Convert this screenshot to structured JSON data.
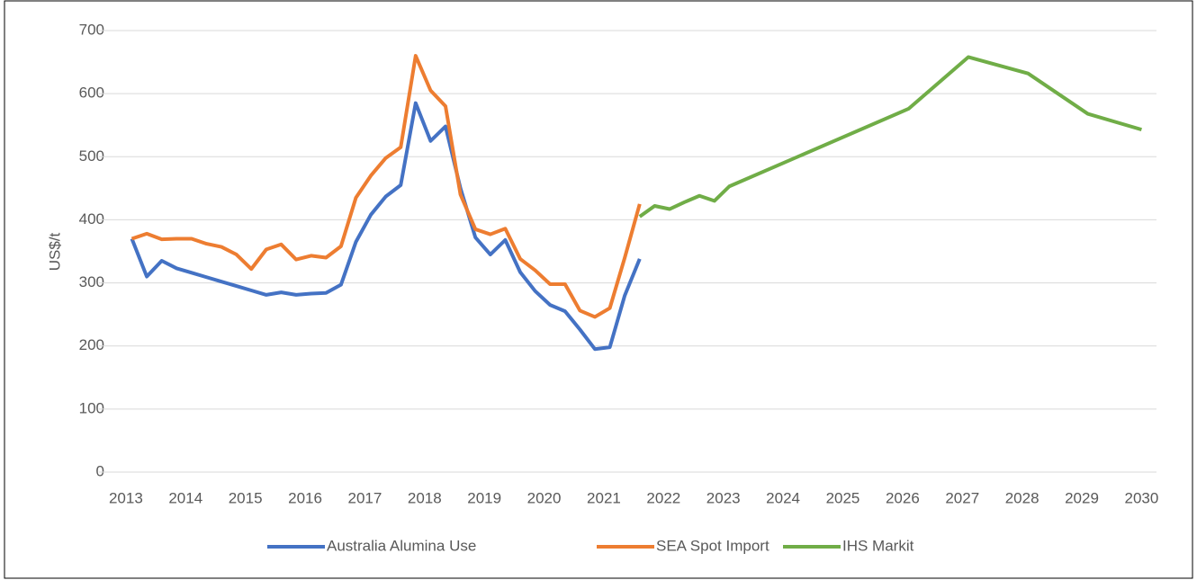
{
  "chart_data": {
    "type": "line",
    "y_label": "US$/t",
    "xlim": [
      2012.55,
      2030.25
    ],
    "xticks": [
      2013,
      2014,
      2015,
      2016,
      2017,
      2018,
      2019,
      2020,
      2021,
      2022,
      2023,
      2024,
      2025,
      2026,
      2027,
      2028,
      2029,
      2030
    ],
    "ylim": [
      0,
      700
    ],
    "yticks": [
      0,
      100,
      200,
      300,
      400,
      500,
      600,
      700
    ],
    "grid": true,
    "legend": "bottom",
    "series": [
      {
        "name": "Australia Alumina Use",
        "color": "#4472c4",
        "x": [
          2013.1,
          2013.35,
          2013.6,
          2013.85,
          2014.1,
          2014.35,
          2014.6,
          2014.85,
          2015.1,
          2015.35,
          2015.6,
          2015.85,
          2016.1,
          2016.35,
          2016.6,
          2016.85,
          2017.1,
          2017.35,
          2017.6,
          2017.85,
          2018.1,
          2018.35,
          2018.6,
          2018.85,
          2019.1,
          2019.35,
          2019.6,
          2019.85,
          2020.1,
          2020.35,
          2020.6,
          2020.85,
          2021.1,
          2021.35,
          2021.6
        ],
        "values": [
          370,
          310,
          335,
          323,
          316,
          309,
          302,
          295,
          288,
          281,
          285,
          281,
          283,
          284,
          297,
          365,
          408,
          437,
          455,
          585,
          525,
          548,
          450,
          372,
          345,
          368,
          317,
          287,
          265,
          255,
          226,
          195,
          198,
          280,
          338
        ]
      },
      {
        "name": "SEA Spot Import",
        "color": "#ed7d31",
        "x": [
          2013.1,
          2013.35,
          2013.6,
          2013.85,
          2014.1,
          2014.35,
          2014.6,
          2014.85,
          2015.1,
          2015.35,
          2015.6,
          2015.85,
          2016.1,
          2016.35,
          2016.6,
          2016.85,
          2017.1,
          2017.35,
          2017.6,
          2017.85,
          2018.1,
          2018.35,
          2018.6,
          2018.85,
          2019.1,
          2019.35,
          2019.6,
          2019.85,
          2020.1,
          2020.35,
          2020.6,
          2020.85,
          2021.1,
          2021.35,
          2021.6
        ],
        "values": [
          370,
          378,
          369,
          370,
          370,
          362,
          357,
          345,
          322,
          353,
          361,
          337,
          343,
          340,
          358,
          435,
          470,
          498,
          515,
          660,
          605,
          580,
          440,
          385,
          377,
          386,
          338,
          320,
          298,
          298,
          256,
          246,
          260,
          340,
          425
        ]
      },
      {
        "name": "IHS Markit",
        "color": "#70ad47",
        "x": [
          2021.6,
          2021.85,
          2022.1,
          2022.35,
          2022.6,
          2022.85,
          2023.1,
          2026.1,
          2027.1,
          2028.1,
          2029.1,
          2030.0
        ],
        "values": [
          405,
          422,
          417,
          428,
          438,
          430,
          453,
          576,
          658,
          632,
          568,
          543
        ]
      }
    ]
  }
}
